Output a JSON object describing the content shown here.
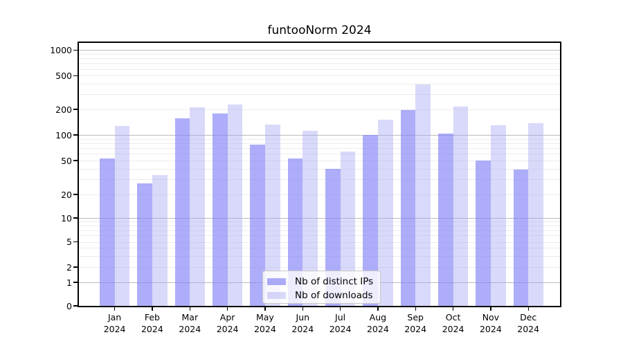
{
  "chart_data": {
    "type": "bar",
    "title": "funtooNorm 2024",
    "categories": [
      "Jan",
      "Feb",
      "Mar",
      "Apr",
      "May",
      "Jun",
      "Jul",
      "Aug",
      "Sep",
      "Oct",
      "Nov",
      "Dec"
    ],
    "x_label_year": "2024",
    "series": [
      {
        "name": "Nb of distinct IPs",
        "color_hex": "#acacf8",
        "fill": "rgba(130,130,246,0.66)",
        "values": [
          53,
          27,
          156,
          180,
          77,
          53,
          40,
          101,
          196,
          104,
          50,
          39
        ]
      },
      {
        "name": "Nb of downloads",
        "color_hex": "#dcdcf8",
        "fill": "rgba(165,165,240,0.42)",
        "values": [
          128,
          34,
          213,
          228,
          132,
          111,
          64,
          152,
          392,
          214,
          130,
          138
        ]
      }
    ],
    "y_ticks": [
      0,
      1,
      2,
      5,
      10,
      20,
      50,
      100,
      200,
      500,
      1000
    ],
    "ylim": [
      0,
      1250
    ],
    "y_scale": "log-like, zero pinned to baseline",
    "y_scale_anchors": [
      [
        0,
        380
      ],
      [
        1,
        346
      ],
      [
        2,
        324
      ],
      [
        5,
        287.5
      ],
      [
        10,
        253
      ],
      [
        20,
        219
      ],
      [
        50,
        170
      ],
      [
        100,
        133
      ],
      [
        200,
        96
      ],
      [
        500,
        47.3
      ],
      [
        1000,
        10.3
      ]
    ],
    "grid": {
      "major_values": [
        1,
        10,
        100,
        1000
      ],
      "minor_values": [
        2,
        3,
        4,
        5,
        6,
        7,
        8,
        9,
        20,
        30,
        40,
        50,
        60,
        70,
        80,
        90,
        200,
        300,
        400,
        500,
        600,
        700,
        800,
        900
      ],
      "major_color": "#bbbbbb",
      "minor_color": "#ececec"
    },
    "legend": {
      "position": "inside-bottom-center",
      "entries": [
        "Nb of distinct IPs",
        "Nb of downloads"
      ]
    }
  }
}
